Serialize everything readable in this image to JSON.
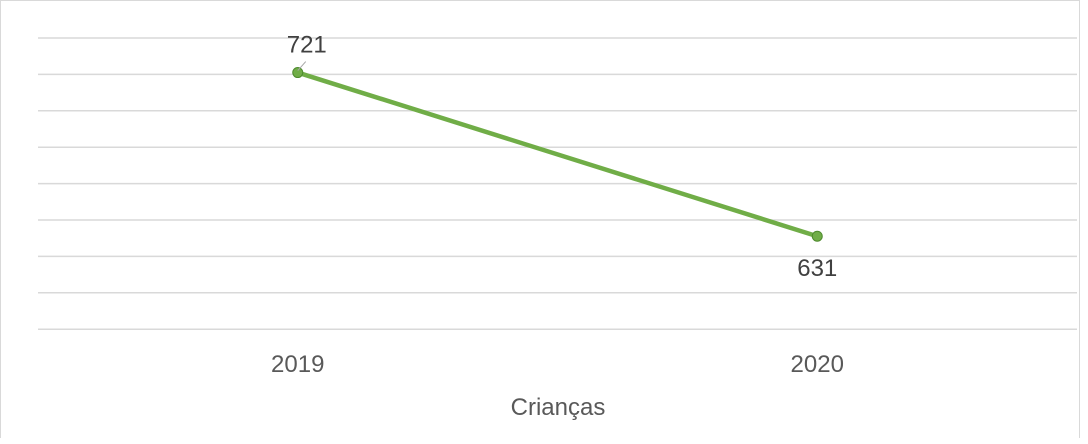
{
  "chart_data": {
    "type": "line",
    "categories": [
      "2019",
      "2020"
    ],
    "series": [
      {
        "values": [
          721,
          631
        ],
        "color": "#70ad47"
      }
    ],
    "xlabel": "Crianças",
    "ylabel": "",
    "title": "",
    "ylim": [
      580,
      740
    ],
    "grid": true,
    "legend": "none"
  }
}
